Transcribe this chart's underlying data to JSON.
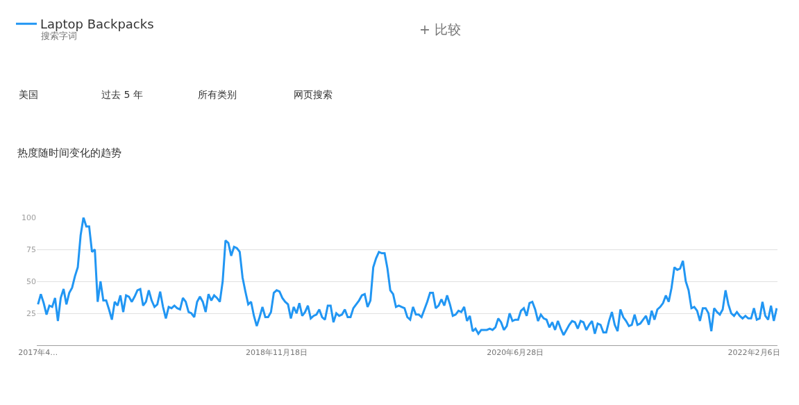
{
  "chart_data": {
    "type": "line",
    "title": "热度随时间变化的趋势",
    "annotations": [
      "搜索字词",
      "+ 比较",
      "美国",
      "过去 5 年",
      "所有类别",
      "网页搜索"
    ],
    "x": [
      "2017-04-09",
      "2017-04-16",
      "2017-04-23",
      "2017-04-30",
      "2017-05-07",
      "2017-05-14",
      "2017-05-21",
      "2017-05-28",
      "2017-06-04",
      "2017-06-11",
      "2017-06-18",
      "2017-06-25",
      "2017-07-02",
      "2017-07-09",
      "2017-07-16",
      "2017-07-23",
      "2017-07-30",
      "2017-08-06",
      "2017-08-13",
      "2017-08-20",
      "2017-08-27",
      "2017-09-03",
      "2017-09-10",
      "2017-09-17",
      "2017-09-24",
      "2017-10-01",
      "2017-10-08",
      "2017-10-15",
      "2017-10-22",
      "2017-10-29",
      "2017-11-05",
      "2017-11-12",
      "2017-11-19",
      "2017-11-26",
      "2017-12-03",
      "2017-12-10",
      "2017-12-17",
      "2017-12-24",
      "2017-12-31",
      "2018-01-07",
      "2018-01-14",
      "2018-01-21",
      "2018-01-28",
      "2018-02-04",
      "2018-02-11",
      "2018-02-18",
      "2018-02-25",
      "2018-03-04",
      "2018-03-11",
      "2018-03-18",
      "2018-03-25",
      "2018-04-01",
      "2018-04-08",
      "2018-04-15",
      "2018-04-22",
      "2018-04-29",
      "2018-05-06",
      "2018-05-13",
      "2018-05-20",
      "2018-05-27",
      "2018-06-03",
      "2018-06-10",
      "2018-06-17",
      "2018-06-24",
      "2018-07-01",
      "2018-07-08",
      "2018-07-15",
      "2018-07-22",
      "2018-07-29",
      "2018-08-05",
      "2018-08-12",
      "2018-08-19",
      "2018-08-26",
      "2018-09-02",
      "2018-09-09",
      "2018-09-16",
      "2018-09-23",
      "2018-09-30",
      "2018-10-07",
      "2018-10-14",
      "2018-10-21",
      "2018-10-28",
      "2018-11-04",
      "2018-11-11",
      "2018-11-18",
      "2018-11-25",
      "2018-12-02",
      "2018-12-09",
      "2018-12-16",
      "2018-12-23",
      "2018-12-30",
      "2019-01-06",
      "2019-01-13",
      "2019-01-20",
      "2019-01-27",
      "2019-02-03",
      "2019-02-10",
      "2019-02-17",
      "2019-02-24",
      "2019-03-03",
      "2019-03-10",
      "2019-03-17",
      "2019-03-24",
      "2019-03-31",
      "2019-04-07",
      "2019-04-14",
      "2019-04-21",
      "2019-04-28",
      "2019-05-05",
      "2019-05-12",
      "2019-05-19",
      "2019-05-26",
      "2019-06-02",
      "2019-06-09",
      "2019-06-16",
      "2019-06-23",
      "2019-06-30",
      "2019-07-07",
      "2019-07-14",
      "2019-07-21",
      "2019-07-28",
      "2019-08-04",
      "2019-08-11",
      "2019-08-18",
      "2019-08-25",
      "2019-09-01",
      "2019-09-08",
      "2019-09-15",
      "2019-09-22",
      "2019-09-29",
      "2019-10-06",
      "2019-10-13",
      "2019-10-20",
      "2019-10-27",
      "2019-11-03",
      "2019-11-10",
      "2019-11-17",
      "2019-11-24",
      "2019-12-01",
      "2019-12-08",
      "2019-12-15",
      "2019-12-22",
      "2019-12-29",
      "2020-01-05",
      "2020-01-12",
      "2020-01-19",
      "2020-01-26",
      "2020-02-02",
      "2020-02-09",
      "2020-02-16",
      "2020-02-23",
      "2020-03-01",
      "2020-03-08",
      "2020-03-15",
      "2020-03-22",
      "2020-03-29",
      "2020-04-05",
      "2020-04-12",
      "2020-04-19",
      "2020-04-26",
      "2020-05-03",
      "2020-05-10",
      "2020-05-17",
      "2020-05-24",
      "2020-05-31",
      "2020-06-07",
      "2020-06-14",
      "2020-06-21",
      "2020-06-28",
      "2020-07-05",
      "2020-07-12",
      "2020-07-19",
      "2020-07-26",
      "2020-08-02",
      "2020-08-09",
      "2020-08-16",
      "2020-08-23",
      "2020-08-30",
      "2020-09-06",
      "2020-09-13",
      "2020-09-20",
      "2020-09-27",
      "2020-10-04",
      "2020-10-11",
      "2020-10-18",
      "2020-10-25",
      "2020-11-01",
      "2020-11-08",
      "2020-11-15",
      "2020-11-22",
      "2020-11-29",
      "2020-12-06",
      "2020-12-13",
      "2020-12-20",
      "2020-12-27",
      "2021-01-03",
      "2021-01-10",
      "2021-01-17",
      "2021-01-24",
      "2021-01-31",
      "2021-02-07",
      "2021-02-14",
      "2021-02-21",
      "2021-02-28",
      "2021-03-07",
      "2021-03-14",
      "2021-03-21",
      "2021-03-28",
      "2021-04-04",
      "2021-04-11",
      "2021-04-18",
      "2021-04-25",
      "2021-05-02",
      "2021-05-09",
      "2021-05-16",
      "2021-05-23",
      "2021-05-30",
      "2021-06-06",
      "2021-06-13",
      "2021-06-20",
      "2021-06-27",
      "2021-07-04",
      "2021-07-11",
      "2021-07-18",
      "2021-07-25",
      "2021-08-01",
      "2021-08-08",
      "2021-08-15",
      "2021-08-22",
      "2021-08-29",
      "2021-09-05",
      "2021-09-12",
      "2021-09-19",
      "2021-09-26",
      "2021-10-03",
      "2021-10-10",
      "2021-10-17",
      "2021-10-24",
      "2021-10-31",
      "2021-11-07",
      "2021-11-14",
      "2021-11-21",
      "2021-11-28",
      "2021-12-05",
      "2021-12-12",
      "2021-12-19",
      "2021-12-26",
      "2022-01-02",
      "2022-01-09",
      "2022-01-16",
      "2022-01-23",
      "2022-01-30",
      "2022-02-06",
      "2022-02-13",
      "2022-02-20",
      "2022-02-27",
      "2022-03-06",
      "2022-03-13",
      "2022-03-20",
      "2022-03-27",
      "2022-04-03"
    ],
    "series": [
      {
        "name": "Laptop Backpacks",
        "color": "#2196f3",
        "values": [
          32,
          40,
          33,
          24,
          31,
          30,
          37,
          19,
          37,
          44,
          32,
          41,
          45,
          54,
          61,
          86,
          100,
          93,
          93,
          73,
          75,
          34,
          50,
          35,
          35,
          28,
          20,
          34,
          31,
          39,
          26,
          39,
          38,
          34,
          38,
          43,
          44,
          31,
          34,
          43,
          35,
          30,
          32,
          42,
          30,
          21,
          30,
          29,
          31,
          29,
          28,
          37,
          34,
          26,
          25,
          22,
          34,
          38,
          34,
          26,
          40,
          35,
          39,
          37,
          34,
          50,
          82,
          80,
          70,
          77,
          76,
          73,
          53,
          42,
          32,
          34,
          23,
          15,
          22,
          30,
          22,
          22,
          26,
          41,
          43,
          42,
          37,
          34,
          32,
          21,
          30,
          25,
          33,
          23,
          26,
          31,
          21,
          23,
          24,
          28,
          22,
          20,
          31,
          31,
          18,
          25,
          23,
          24,
          28,
          22,
          22,
          29,
          32,
          35,
          39,
          40,
          30,
          35,
          61,
          68,
          73,
          72,
          72,
          60,
          43,
          40,
          30,
          31,
          30,
          29,
          22,
          20,
          30,
          24,
          24,
          22,
          28,
          34,
          41,
          41,
          29,
          31,
          36,
          31,
          39,
          32,
          23,
          24,
          27,
          26,
          30,
          19,
          23,
          11,
          13,
          9,
          12,
          12,
          12,
          13,
          12,
          14,
          21,
          18,
          12,
          15,
          25,
          19,
          20,
          20,
          27,
          29,
          23,
          33,
          34,
          28,
          19,
          24,
          21,
          20,
          14,
          18,
          12,
          19,
          13,
          8,
          12,
          16,
          19,
          18,
          13,
          19,
          18,
          12,
          16,
          19,
          9,
          17,
          16,
          10,
          10,
          19,
          26,
          16,
          11,
          28,
          22,
          19,
          15,
          16,
          24,
          16,
          17,
          20,
          23,
          16,
          27,
          20,
          28,
          30,
          33,
          39,
          34,
          45,
          61,
          59,
          60,
          66,
          50,
          43,
          29,
          30,
          27,
          19,
          29,
          29,
          25,
          11,
          29,
          26,
          24,
          28,
          43,
          32,
          25,
          23,
          26,
          23,
          21,
          23,
          21,
          21,
          29,
          20,
          21,
          34,
          23,
          20,
          31,
          19,
          29
        ]
      }
    ],
    "xlim": [
      "2017-04-06",
      "2022-04-05"
    ],
    "xticks": [
      {
        "value": "2017-04-09",
        "label": "2017年4…"
      },
      {
        "value": "2018-11-18",
        "label": "2018年11月18日"
      },
      {
        "value": "2020-06-28",
        "label": "2020年6月28日"
      },
      {
        "value": "2022-02-06",
        "label": "2022年2月6日"
      }
    ],
    "ylim": [
      0,
      100
    ],
    "yticks": [
      25,
      50,
      75,
      100
    ],
    "grid": "y",
    "legend": "top left",
    "line_style": "solid"
  }
}
